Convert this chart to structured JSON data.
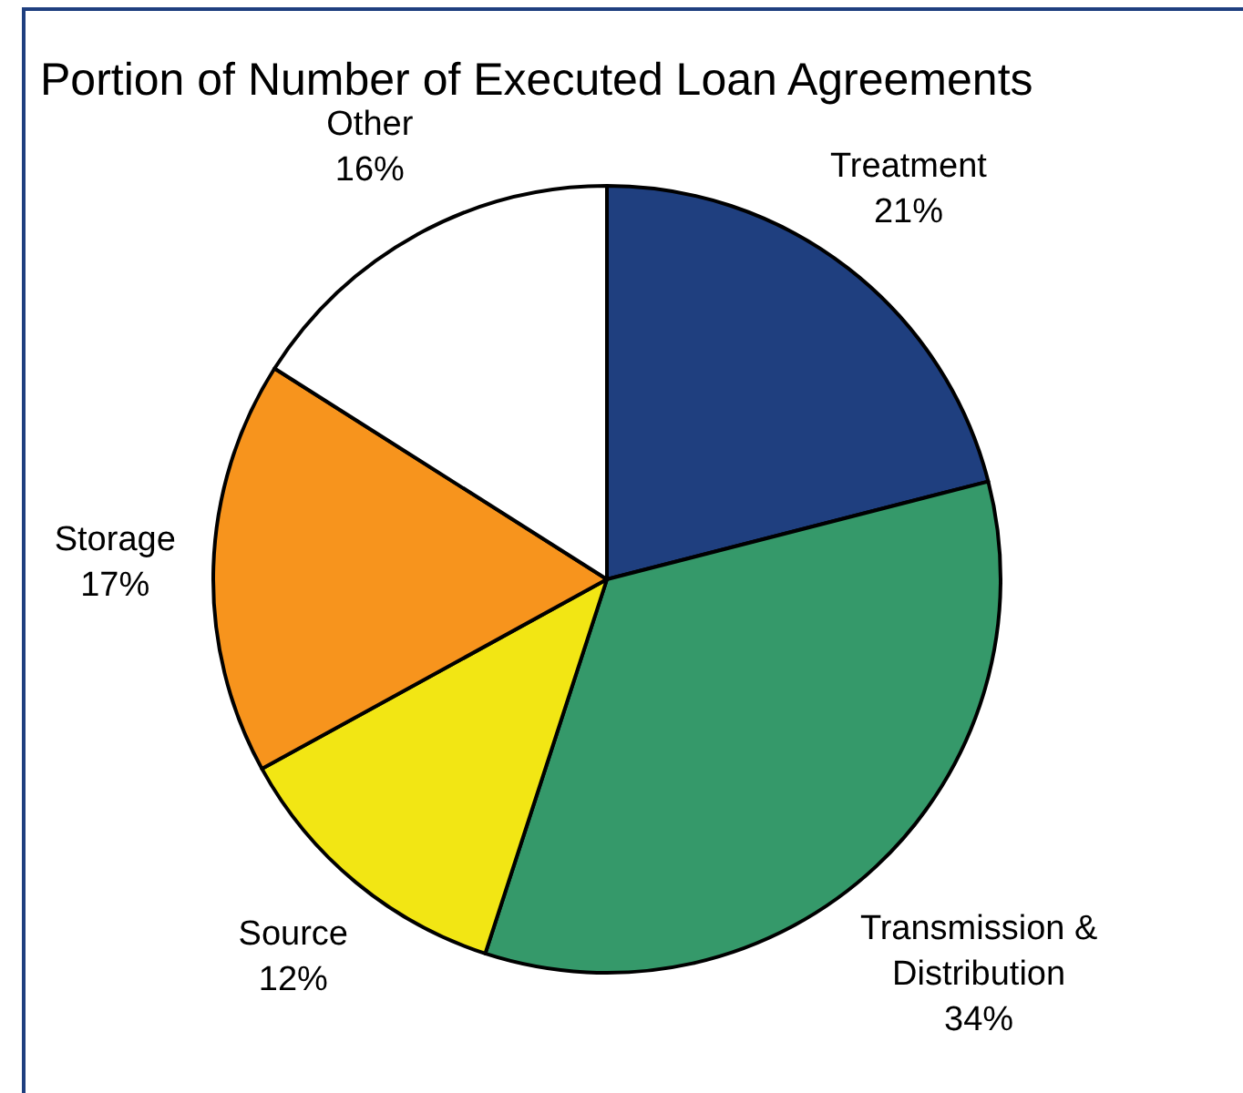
{
  "chart_data": {
    "type": "pie",
    "title": "Portion of Number of Executed Loan Agreements",
    "categories": [
      "Treatment",
      "Transmission & Distribution",
      "Source",
      "Storage",
      "Other"
    ],
    "values": [
      21,
      34,
      12,
      17,
      16
    ],
    "value_labels": [
      "21%",
      "34%",
      "12%",
      "17%",
      "16%"
    ],
    "colors": [
      "#1f3f7f",
      "#35996a",
      "#f2e614",
      "#f7941d",
      "#ffffff"
    ]
  }
}
